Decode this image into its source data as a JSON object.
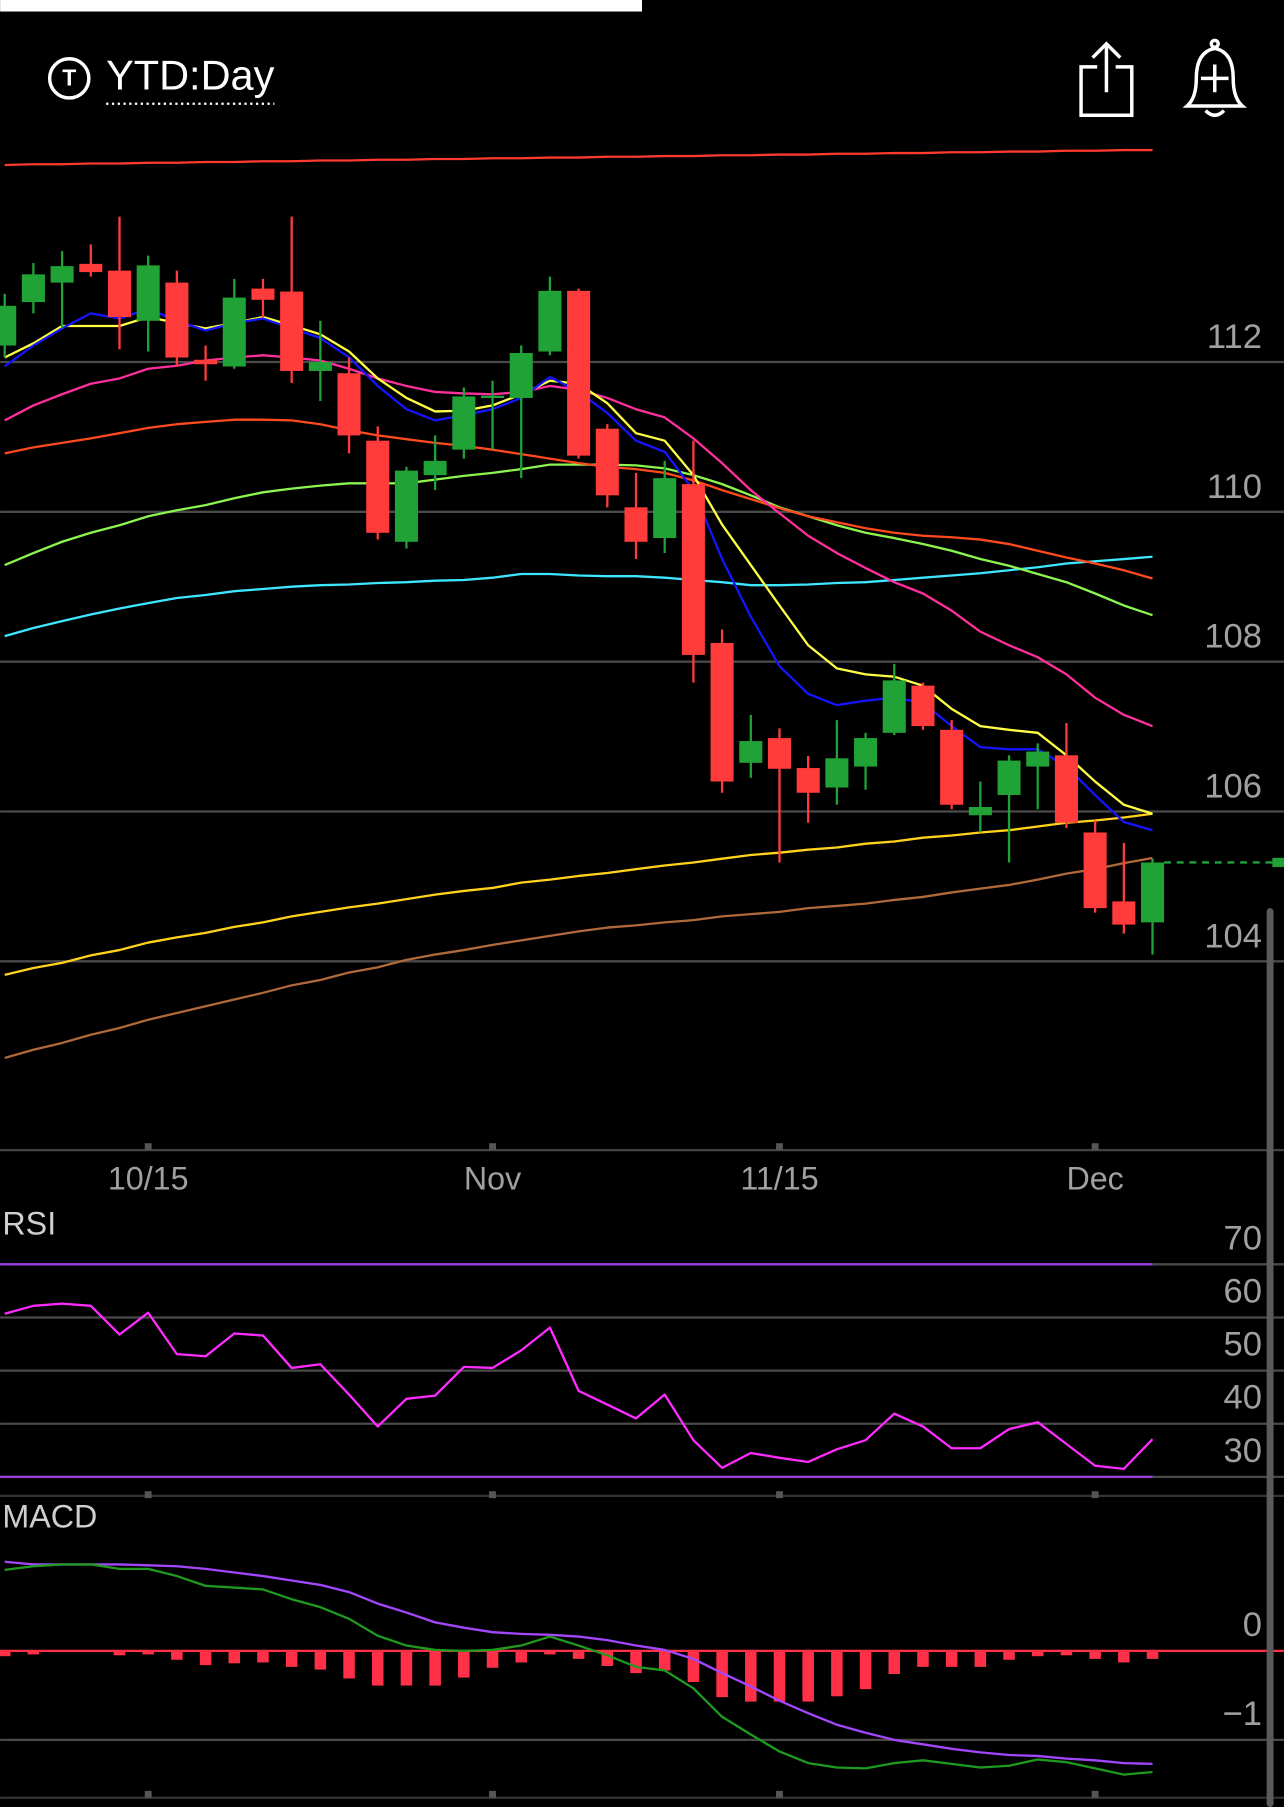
{
  "header": {
    "icon_letter": "T",
    "timeframe": "YTD:Day"
  },
  "chart_data": [
    {
      "type": "candlestick",
      "categories": [
        null,
        null,
        null,
        null,
        null,
        "10/15",
        null,
        null,
        null,
        null,
        null,
        null,
        null,
        null,
        null,
        null,
        null,
        "Nov",
        null,
        null,
        null,
        null,
        null,
        null,
        null,
        null,
        null,
        "11/15",
        null,
        null,
        null,
        null,
        null,
        null,
        null,
        null,
        null,
        null,
        "Dec",
        null,
        null
      ],
      "open": [
        112.22,
        112.8,
        113.06,
        113.31,
        113.22,
        112.55,
        113.06,
        112.03,
        111.94,
        112.98,
        112.94,
        111.88,
        111.85,
        110.95,
        109.6,
        110.49,
        110.83,
        111.52,
        111.52,
        112.14,
        112.95,
        111.11,
        110.06,
        109.65,
        110.37,
        108.25,
        106.65,
        106.98,
        106.58,
        106.32,
        106.6,
        107.05,
        107.68,
        107.09,
        105.95,
        106.22,
        106.6,
        106.75,
        105.72,
        104.8,
        104.52
      ],
      "high": [
        112.91,
        113.32,
        113.48,
        113.57,
        113.94,
        113.42,
        113.22,
        112.22,
        113.11,
        113.11,
        113.94,
        112.55,
        112.06,
        111.14,
        110.6,
        111.02,
        111.66,
        111.75,
        112.22,
        113.14,
        112.98,
        111.17,
        110.52,
        110.68,
        110.95,
        108.43,
        107.29,
        107.11,
        106.74,
        107.22,
        107.05,
        107.97,
        107.72,
        107.22,
        106.4,
        106.75,
        106.91,
        107.18,
        105.88,
        105.58,
        105.37
      ],
      "low": [
        112.06,
        112.65,
        112.45,
        113.14,
        112.17,
        112.14,
        111.94,
        111.75,
        111.91,
        112.6,
        111.72,
        111.48,
        110.78,
        109.63,
        109.51,
        110.29,
        110.71,
        110.83,
        110.45,
        112.09,
        110.71,
        110.06,
        109.37,
        109.45,
        107.72,
        106.25,
        106.45,
        105.32,
        105.85,
        106.09,
        106.29,
        107.02,
        107.09,
        106.03,
        105.72,
        105.32,
        106.03,
        105.78,
        104.65,
        104.37,
        104.09
      ],
      "close": [
        112.75,
        113.17,
        113.28,
        113.2,
        112.6,
        113.29,
        112.06,
        111.97,
        112.86,
        112.83,
        111.88,
        112.0,
        111.02,
        109.72,
        110.55,
        110.68,
        111.54,
        111.55,
        112.12,
        112.95,
        110.75,
        110.22,
        109.6,
        110.45,
        108.09,
        106.4,
        106.94,
        106.57,
        106.25,
        106.71,
        106.98,
        107.75,
        107.14,
        106.09,
        106.06,
        106.68,
        106.8,
        105.85,
        104.71,
        104.49,
        105.32
      ],
      "up_color": "#20a236",
      "down_color": "#ff3b3b",
      "series": [
        {
          "color": "#ff3b30",
          "values": [
            114.63,
            114.64,
            114.64,
            114.65,
            114.65,
            114.66,
            114.66,
            114.67,
            114.67,
            114.68,
            114.68,
            114.69,
            114.69,
            114.7,
            114.7,
            114.71,
            114.71,
            114.72,
            114.72,
            114.73,
            114.73,
            114.74,
            114.74,
            114.75,
            114.75,
            114.76,
            114.76,
            114.77,
            114.77,
            114.78,
            114.78,
            114.79,
            114.79,
            114.8,
            114.8,
            114.81,
            114.81,
            114.82,
            114.82,
            114.83,
            114.83
          ]
        },
        {
          "color": "#b0693a",
          "values": [
            102.71,
            102.82,
            102.91,
            103.02,
            103.11,
            103.22,
            103.31,
            103.4,
            103.49,
            103.58,
            103.68,
            103.75,
            103.85,
            103.92,
            104.02,
            104.09,
            104.15,
            104.22,
            104.28,
            104.34,
            104.4,
            104.45,
            104.48,
            104.52,
            104.55,
            104.6,
            104.63,
            104.66,
            104.71,
            104.74,
            104.77,
            104.82,
            104.86,
            104.92,
            104.97,
            105.02,
            105.09,
            105.17,
            105.23,
            105.31,
            105.38
          ]
        },
        {
          "color": "#ffd21c",
          "values": [
            103.82,
            103.91,
            103.98,
            104.08,
            104.15,
            104.25,
            104.32,
            104.38,
            104.46,
            104.52,
            104.6,
            104.66,
            104.72,
            104.77,
            104.83,
            104.89,
            104.94,
            104.98,
            105.05,
            105.09,
            105.14,
            105.18,
            105.23,
            105.28,
            105.32,
            105.37,
            105.42,
            105.45,
            105.49,
            105.52,
            105.57,
            105.6,
            105.65,
            105.68,
            105.72,
            105.75,
            105.8,
            105.85,
            105.88,
            105.92,
            105.97
          ]
        },
        {
          "color": "#3ee6ff",
          "values": [
            108.34,
            108.45,
            108.54,
            108.63,
            108.71,
            108.78,
            108.85,
            108.89,
            108.94,
            108.97,
            109.0,
            109.02,
            109.03,
            109.05,
            109.06,
            109.08,
            109.09,
            109.12,
            109.17,
            109.17,
            109.15,
            109.14,
            109.14,
            109.12,
            109.09,
            109.06,
            109.02,
            109.02,
            109.03,
            109.05,
            109.06,
            109.09,
            109.12,
            109.15,
            109.18,
            109.22,
            109.26,
            109.31,
            109.34,
            109.37,
            109.4
          ]
        },
        {
          "color": "#8cf550",
          "values": [
            109.29,
            109.45,
            109.6,
            109.72,
            109.82,
            109.94,
            110.02,
            110.09,
            110.18,
            110.26,
            110.31,
            110.35,
            110.38,
            110.38,
            110.38,
            110.43,
            110.48,
            110.52,
            110.57,
            110.63,
            110.63,
            110.63,
            110.62,
            110.58,
            110.49,
            110.37,
            110.22,
            110.06,
            109.94,
            109.82,
            109.72,
            109.65,
            109.57,
            109.48,
            109.37,
            109.28,
            109.17,
            109.06,
            108.91,
            108.75,
            108.62
          ]
        },
        {
          "color": "#ff4a1e",
          "values": [
            110.78,
            110.86,
            110.92,
            110.98,
            111.05,
            111.12,
            111.17,
            111.2,
            111.23,
            111.23,
            111.22,
            111.17,
            111.09,
            111.02,
            110.97,
            110.92,
            110.88,
            110.83,
            110.77,
            110.71,
            110.65,
            110.6,
            110.57,
            110.52,
            110.42,
            110.29,
            110.17,
            110.05,
            109.94,
            109.86,
            109.78,
            109.72,
            109.68,
            109.66,
            109.63,
            109.57,
            109.48,
            109.39,
            109.31,
            109.22,
            109.11
          ]
        },
        {
          "color": "#ff2f9e",
          "values": [
            111.22,
            111.42,
            111.57,
            111.71,
            111.78,
            111.91,
            111.95,
            112.02,
            112.06,
            112.09,
            112.06,
            112.02,
            111.91,
            111.78,
            111.68,
            111.6,
            111.58,
            111.57,
            111.6,
            111.68,
            111.63,
            111.52,
            111.37,
            111.26,
            110.98,
            110.65,
            110.29,
            109.98,
            109.68,
            109.45,
            109.25,
            109.06,
            108.91,
            108.68,
            108.4,
            108.22,
            108.06,
            107.83,
            107.52,
            107.29,
            107.14
          ]
        },
        {
          "color": "#ffff45",
          "values": [
            112.06,
            112.25,
            112.48,
            112.48,
            112.48,
            112.6,
            112.52,
            112.45,
            112.52,
            112.6,
            112.49,
            112.37,
            112.14,
            111.78,
            111.52,
            111.34,
            111.35,
            111.42,
            111.57,
            111.75,
            111.71,
            111.45,
            111.05,
            110.95,
            110.49,
            109.83,
            109.29,
            108.75,
            108.22,
            107.91,
            107.83,
            107.8,
            107.68,
            107.37,
            107.14,
            107.09,
            107.05,
            106.75,
            106.4,
            106.09,
            105.97
          ]
        },
        {
          "color": "#1414ff",
          "values": [
            111.94,
            112.22,
            112.45,
            112.65,
            112.58,
            112.71,
            112.55,
            112.42,
            112.52,
            112.58,
            112.45,
            112.32,
            112.06,
            111.68,
            111.37,
            111.22,
            111.29,
            111.37,
            111.52,
            111.8,
            111.6,
            111.32,
            110.95,
            110.8,
            110.29,
            109.37,
            108.6,
            107.94,
            107.57,
            107.42,
            107.48,
            107.52,
            107.45,
            107.14,
            106.86,
            106.83,
            106.83,
            106.6,
            106.22,
            105.86,
            105.75
          ]
        }
      ],
      "ylim": [
        101.48,
        115.14
      ],
      "yticks": [
        104,
        106,
        108,
        110,
        112
      ],
      "grid": true,
      "last_price_line": true
    },
    {
      "type": "line",
      "title": "RSI",
      "color": "#ff2cff",
      "values": [
        60.7,
        62.2,
        62.6,
        62.2,
        56.8,
        60.9,
        53.1,
        52.7,
        57.0,
        56.6,
        50.5,
        51.2,
        45.5,
        39.5,
        44.7,
        45.3,
        50.7,
        50.5,
        53.8,
        58.1,
        46.2,
        43.6,
        41.0,
        45.5,
        36.9,
        31.7,
        34.5,
        33.6,
        32.8,
        35.2,
        36.9,
        41.9,
        39.5,
        35.4,
        35.4,
        39.0,
        40.3,
        36.2,
        32.1,
        31.5,
        37.1
      ],
      "ylim": [
        26,
        80
      ],
      "yticks": [
        30,
        40,
        50,
        60,
        70
      ],
      "levels": [
        30,
        70
      ],
      "level_color": "#9b3fe0",
      "grid": true
    },
    {
      "type": "macd",
      "title": "MACD",
      "series": [
        {
          "style": "bar",
          "color": "#ff3048",
          "values": [
            -0.06,
            -0.04,
            -0.01,
            -0.01,
            -0.05,
            -0.04,
            -0.1,
            -0.16,
            -0.14,
            -0.13,
            -0.18,
            -0.21,
            -0.31,
            -0.39,
            -0.39,
            -0.39,
            -0.3,
            -0.19,
            -0.13,
            -0.04,
            -0.09,
            -0.17,
            -0.25,
            -0.22,
            -0.35,
            -0.52,
            -0.57,
            -0.57,
            -0.57,
            -0.51,
            -0.43,
            -0.26,
            -0.18,
            -0.18,
            -0.18,
            -0.1,
            -0.06,
            -0.05,
            -0.09,
            -0.13,
            -0.09
          ]
        },
        {
          "style": "line",
          "color": "#a347ff",
          "values": [
            1.0,
            0.97,
            0.97,
            0.97,
            0.97,
            0.96,
            0.95,
            0.92,
            0.88,
            0.84,
            0.79,
            0.74,
            0.66,
            0.53,
            0.43,
            0.32,
            0.26,
            0.21,
            0.19,
            0.18,
            0.16,
            0.12,
            0.06,
            0.01,
            -0.09,
            -0.25,
            -0.4,
            -0.56,
            -0.7,
            -0.83,
            -0.92,
            -1.0,
            -1.05,
            -1.1,
            -1.14,
            -1.17,
            -1.18,
            -1.21,
            -1.23,
            -1.26,
            -1.27
          ]
        },
        {
          "style": "line",
          "color": "#1f9a1f",
          "values": [
            0.91,
            0.95,
            0.97,
            0.97,
            0.92,
            0.92,
            0.84,
            0.73,
            0.71,
            0.69,
            0.58,
            0.49,
            0.36,
            0.17,
            0.06,
            0.01,
            0,
            0.01,
            0.06,
            0.16,
            0.06,
            -0.05,
            -0.18,
            -0.22,
            -0.42,
            -0.74,
            -0.94,
            -1.13,
            -1.26,
            -1.31,
            -1.32,
            -1.26,
            -1.23,
            -1.27,
            -1.31,
            -1.29,
            -1.22,
            -1.25,
            -1.32,
            -1.39,
            -1.36
          ]
        }
      ],
      "ylim": [
        -1.65,
        1.65
      ],
      "yticks": [
        {
          "value": -1,
          "label": "−1"
        },
        0
      ],
      "grid": true
    }
  ]
}
